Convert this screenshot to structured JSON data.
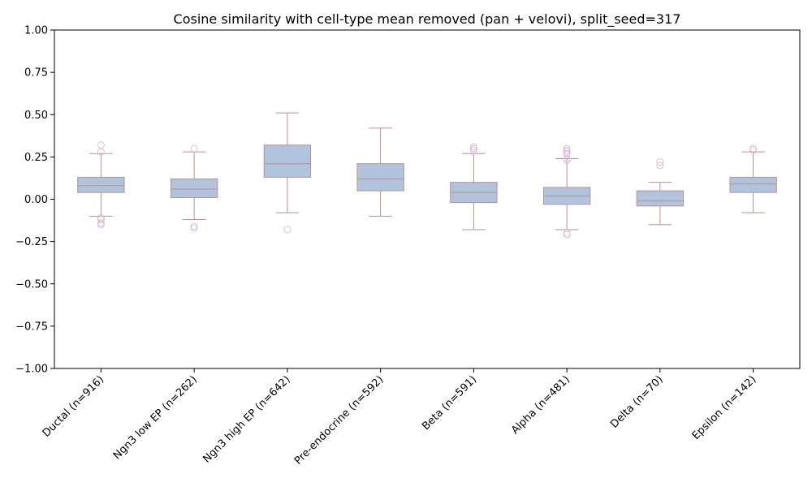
{
  "chart_data": {
    "type": "box",
    "title": "Cosine similarity with cell-type mean removed (pan + velovi), split_seed=317",
    "xlabel": "",
    "ylabel": "",
    "ylim": [
      -1.0,
      1.0
    ],
    "yticks": [
      -1.0,
      -0.75,
      -0.5,
      -0.25,
      0.0,
      0.25,
      0.5,
      0.75,
      1.0
    ],
    "ytick_labels": [
      "−1.00",
      "−0.75",
      "−0.50",
      "−0.25",
      "0.00",
      "0.25",
      "0.50",
      "0.75",
      "1.00"
    ],
    "grid": false,
    "colors": {
      "box_fill": "#b0c4de",
      "box_edge": "#bc8f8f",
      "outlier_edge": "#d8bfd8"
    },
    "categories": [
      "Ductal (n=916)",
      "Ngn3 low EP (n=262)",
      "Ngn3 high EP (n=642)",
      "Pre-endocrine (n=592)",
      "Beta (n=591)",
      "Alpha (n=481)",
      "Delta (n=70)",
      "Epsilon (n=142)"
    ],
    "boxes": [
      {
        "whisker_low": -0.1,
        "q1": 0.04,
        "median": 0.08,
        "q3": 0.13,
        "whisker_high": 0.27,
        "outliers": [
          0.32,
          0.28,
          -0.11,
          -0.12,
          -0.14,
          -0.15
        ]
      },
      {
        "whisker_low": -0.12,
        "q1": 0.01,
        "median": 0.06,
        "q3": 0.12,
        "whisker_high": 0.28,
        "outliers": [
          0.3,
          -0.16,
          -0.17
        ]
      },
      {
        "whisker_low": -0.08,
        "q1": 0.13,
        "median": 0.21,
        "q3": 0.32,
        "whisker_high": 0.51,
        "outliers": [
          -0.18
        ]
      },
      {
        "whisker_low": -0.1,
        "q1": 0.05,
        "median": 0.12,
        "q3": 0.21,
        "whisker_high": 0.42,
        "outliers": []
      },
      {
        "whisker_low": -0.18,
        "q1": -0.02,
        "median": 0.04,
        "q3": 0.1,
        "whisker_high": 0.27,
        "outliers": [
          0.31,
          0.3,
          0.29
        ]
      },
      {
        "whisker_low": -0.18,
        "q1": -0.03,
        "median": 0.02,
        "q3": 0.07,
        "whisker_high": 0.24,
        "outliers": [
          0.3,
          0.29,
          0.28,
          0.27,
          0.24,
          0.23,
          -0.2,
          -0.21
        ]
      },
      {
        "whisker_low": -0.15,
        "q1": -0.04,
        "median": -0.01,
        "q3": 0.05,
        "whisker_high": 0.1,
        "outliers": [
          0.22,
          0.2
        ]
      },
      {
        "whisker_low": -0.08,
        "q1": 0.04,
        "median": 0.09,
        "q3": 0.13,
        "whisker_high": 0.28,
        "outliers": [
          0.3,
          0.29
        ]
      }
    ]
  }
}
